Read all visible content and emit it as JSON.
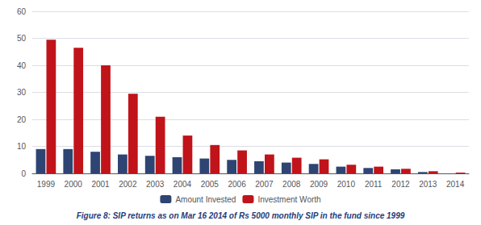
{
  "chart_data": {
    "type": "bar",
    "title": "Figure 8: SIP returns as on Mar 16 2014 of Rs 5000 monthly SIP in the fund since 1999",
    "categories": [
      "1999",
      "2000",
      "2001",
      "2002",
      "2003",
      "2004",
      "2005",
      "2006",
      "2007",
      "2008",
      "2009",
      "2010",
      "2011",
      "2012",
      "2013",
      "2014"
    ],
    "series": [
      {
        "name": "Amount Invested",
        "color": "#2E4473",
        "values": [
          9,
          9,
          8,
          7,
          6.5,
          6,
          5.5,
          5,
          4.5,
          4,
          3.5,
          2.5,
          2,
          1.5,
          0.5,
          0
        ]
      },
      {
        "name": "Investment Worth",
        "color": "#C0131A",
        "values": [
          49.5,
          46.5,
          40,
          29.5,
          21,
          14,
          10.5,
          8.5,
          7,
          5.8,
          5.2,
          3.2,
          2.5,
          1.7,
          0.8,
          0.3
        ]
      }
    ],
    "ylim": [
      0,
      60
    ],
    "yticks": [
      0,
      10,
      20,
      30,
      40,
      50,
      60
    ],
    "grid": true,
    "legend": "bottom"
  }
}
